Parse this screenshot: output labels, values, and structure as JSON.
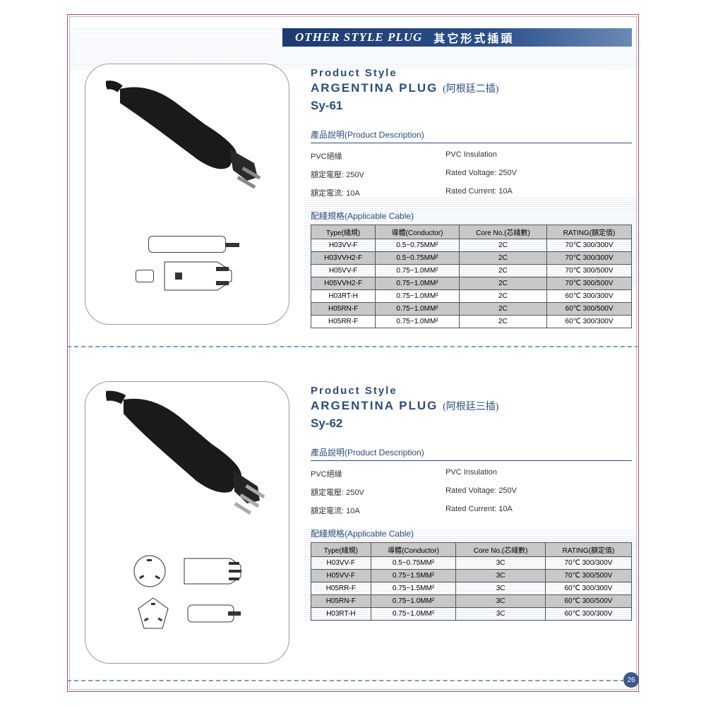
{
  "header": {
    "en": "OTHER STYLE PLUG",
    "cn": "其它形式插頭"
  },
  "page_number": "26",
  "colors": {
    "frame": "#b94a6b",
    "accent": "#2a4d7e",
    "banner_start": "#1e3a6e",
    "banner_end": "#6a8ab5",
    "table_header": "#c8c8c8",
    "table_shaded": "#c8c8c8",
    "dashed": "#7a9cc4"
  },
  "products": [
    {
      "style_label": "Product Style",
      "title_en": "ARGENTINA PLUG",
      "title_cn": "(阿根廷二插)",
      "model": "Sy-61",
      "desc_header": "產品說明(Product Description)",
      "desc": [
        [
          "PVC絕緣",
          "PVC Insulation"
        ],
        [
          "額定電壓: 250V",
          "Rated Voltage: 250V"
        ],
        [
          "額定電流: 10A",
          "Rated Current: 10A"
        ]
      ],
      "cable_header": "配綫規格(Applicable Cable)",
      "table": {
        "columns": [
          "Type(綫規)",
          "導體(Conductor)",
          "Core No.(芯綫數)",
          "RATING(額定值)"
        ],
        "rows": [
          [
            "H03VV-F",
            "0.5~0.75MM²",
            "2C",
            "70℃ 300/300V",
            false
          ],
          [
            "H03VVH2-F",
            "0.5~0.75MM²",
            "2C",
            "70℃ 300/300V",
            true
          ],
          [
            "H05VV-F",
            "0.75~1.0MM²",
            "2C",
            "70℃ 300/500V",
            false
          ],
          [
            "H05VVH2-F",
            "0.75~1.0MM²",
            "2C",
            "70℃ 300/500V",
            true
          ],
          [
            "H03RT-H",
            "0.75~1.0MM²",
            "2C",
            "60℃ 300/300V",
            false
          ],
          [
            "H05RN-F",
            "0.75~1.0MM²",
            "2C",
            "60℃ 300/500V",
            true
          ],
          [
            "H05RR-F",
            "0.75~1.0MM²",
            "2C",
            "60℃ 300/300V",
            false
          ]
        ]
      }
    },
    {
      "style_label": "Product Style",
      "title_en": "ARGENTINA PLUG",
      "title_cn": "(阿根廷三插)",
      "model": "Sy-62",
      "desc_header": "產品說明(Product Description)",
      "desc": [
        [
          "PVC絕緣",
          "PVC Insulation"
        ],
        [
          "額定電壓: 250V",
          "Rated Voltage: 250V"
        ],
        [
          "額定電流: 10A",
          "Rated Current: 10A"
        ]
      ],
      "cable_header": "配綫規格(Applicable Cable)",
      "table": {
        "columns": [
          "Type(綫規)",
          "導體(Conductor)",
          "Core No.(芯綫數)",
          "RATING(額定值)"
        ],
        "rows": [
          [
            "H03VV-F",
            "0.5~0.75MM²",
            "3C",
            "70℃ 300/300V",
            false
          ],
          [
            "H05VV-F",
            "0.75~1.5MM²",
            "3C",
            "70℃ 300/500V",
            true
          ],
          [
            "H05RR-F",
            "0.75~1.5MM²",
            "3C",
            "60℃ 300/300V",
            false
          ],
          [
            "H05RN-F",
            "0.75~1.0MM²",
            "3C",
            "60℃ 300/500V",
            true
          ],
          [
            "H03RT-H",
            "0.75~1.0MM²",
            "3C",
            "60℃ 300/300V",
            false
          ]
        ]
      }
    }
  ]
}
